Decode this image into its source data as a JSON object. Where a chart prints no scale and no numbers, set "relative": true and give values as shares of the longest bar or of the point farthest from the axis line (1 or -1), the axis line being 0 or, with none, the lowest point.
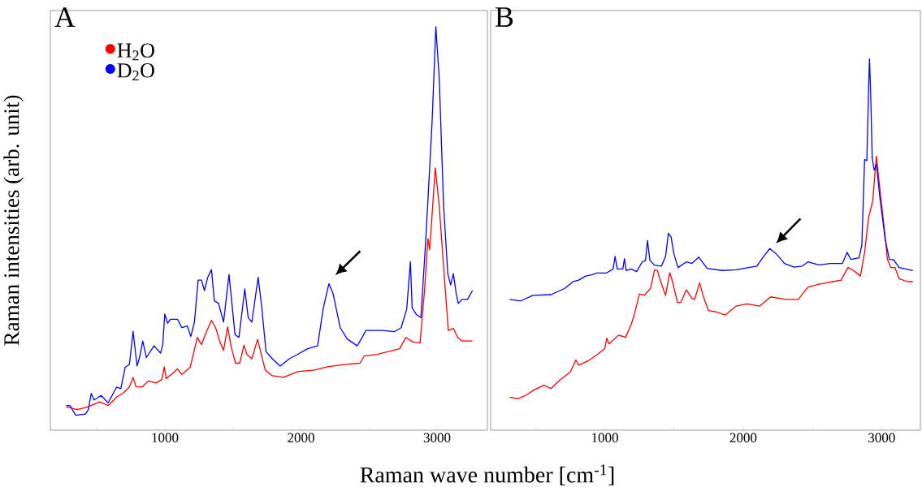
{
  "chart_data": [
    {
      "type": "line",
      "title": "A",
      "xlabel": "Raman wave number [cm$^{-1}$]",
      "ylabel": "Raman intensities (arb. unit)",
      "relative": true,
      "legend": "top left",
      "xlim": [
        158,
        3370
      ],
      "xticks": [
        {
          "value": 500,
          "label": null
        },
        1000,
        {
          "value": 1500,
          "label": null
        },
        2000,
        {
          "value": 2500,
          "label": null
        },
        3000
      ],
      "series": [
        {
          "name": "H$_{2}$O",
          "color": "#ff0000",
          "x": [
            275,
            354,
            416,
            458,
            520,
            583,
            645,
            697,
            739,
            766,
            787,
            832,
            878,
            936,
            978,
            995,
            1009,
            1061,
            1092,
            1124,
            1186,
            1238,
            1269,
            1296,
            1342,
            1373,
            1404,
            1431,
            1461,
            1488,
            1519,
            1550,
            1581,
            1602,
            1639,
            1681,
            1706,
            1737,
            1789,
            1872,
            1976,
            2101,
            2195,
            2330,
            2434,
            2465,
            2559,
            2725,
            2771,
            2819,
            2875,
            2908,
            2933,
            2946,
            2987,
            3016,
            3058,
            3083,
            3120,
            3152,
            3183,
            3260
          ],
          "values": [
            0.058,
            0.051,
            0.056,
            0.061,
            0.07,
            0.061,
            0.082,
            0.093,
            0.107,
            0.131,
            0.108,
            0.107,
            0.122,
            0.117,
            0.126,
            0.157,
            0.128,
            0.142,
            0.152,
            0.138,
            0.156,
            0.23,
            0.212,
            0.237,
            0.272,
            0.254,
            0.219,
            0.198,
            0.256,
            0.205,
            0.166,
            0.166,
            0.211,
            0.188,
            0.177,
            0.225,
            0.191,
            0.149,
            0.135,
            0.131,
            0.145,
            0.149,
            0.157,
            0.163,
            0.166,
            0.184,
            0.188,
            0.202,
            0.23,
            0.219,
            0.216,
            0.346,
            0.475,
            0.447,
            0.65,
            0.556,
            0.36,
            0.247,
            0.252,
            0.23,
            0.221,
            0.221
          ]
        },
        {
          "name": "D$_{2}$O",
          "color": "#0000ff",
          "x": [
            275,
            302,
            344,
            416,
            437,
            458,
            479,
            531,
            583,
            645,
            676,
            708,
            739,
            766,
            795,
            816,
            837,
            864,
            920,
            968,
            984,
            999,
            1020,
            1040,
            1092,
            1124,
            1165,
            1190,
            1217,
            1244,
            1269,
            1290,
            1315,
            1342,
            1363,
            1394,
            1431,
            1471,
            1515,
            1544,
            1587,
            1612,
            1639,
            1685,
            1710,
            1743,
            1789,
            1847,
            1914,
            1976,
            2049,
            2122,
            2164,
            2205,
            2236,
            2288,
            2340,
            2413,
            2455,
            2476,
            2538,
            2600,
            2684,
            2736,
            2777,
            2804,
            2817,
            2850,
            2881,
            2912,
            2933,
            2964,
            2991,
            3016,
            3048,
            3079,
            3100,
            3120,
            3141,
            3156,
            3183,
            3224,
            3260
          ],
          "values": [
            0.061,
            0.061,
            0.037,
            0.04,
            0.051,
            0.091,
            0.075,
            0.086,
            0.068,
            0.107,
            0.103,
            0.156,
            0.163,
            0.245,
            0.159,
            0.184,
            0.221,
            0.18,
            0.209,
            0.191,
            0.212,
            0.288,
            0.265,
            0.275,
            0.275,
            0.254,
            0.258,
            0.232,
            0.268,
            0.372,
            0.372,
            0.346,
            0.379,
            0.398,
            0.321,
            0.314,
            0.268,
            0.386,
            0.237,
            0.23,
            0.35,
            0.279,
            0.268,
            0.379,
            0.31,
            0.195,
            0.177,
            0.159,
            0.177,
            0.188,
            0.202,
            0.209,
            0.303,
            0.363,
            0.338,
            0.254,
            0.226,
            0.209,
            0.233,
            0.247,
            0.247,
            0.247,
            0.244,
            0.254,
            0.3,
            0.418,
            0.303,
            0.286,
            0.279,
            0.444,
            0.57,
            0.767,
            1.0,
            0.872,
            0.556,
            0.388,
            0.36,
            0.388,
            0.338,
            0.314,
            0.324,
            0.324,
            0.346
          ]
        }
      ]
    },
    {
      "type": "line",
      "title": "B",
      "relative": true,
      "xlim": [
        175,
        3280
      ],
      "xticks": [
        {
          "value": 500,
          "label": null
        },
        1000,
        {
          "value": 1500,
          "label": null
        },
        2000,
        {
          "value": 2500,
          "label": null
        },
        3000
      ],
      "series": [
        {
          "color": "#ff0000",
          "x": [
            312,
            372,
            431,
            491,
            561,
            611,
            671,
            751,
            791,
            811,
            881,
            950,
            1000,
            1014,
            1030,
            1100,
            1150,
            1190,
            1210,
            1250,
            1286,
            1330,
            1360,
            1380,
            1400,
            1439,
            1469,
            1489,
            1525,
            1549,
            1589,
            1629,
            1649,
            1685,
            1709,
            1749,
            1809,
            1869,
            1948,
            2028,
            2118,
            2198,
            2308,
            2398,
            2467,
            2547,
            2647,
            2707,
            2757,
            2797,
            2847,
            2877,
            2906,
            2936,
            2962,
            2986,
            3026,
            3042,
            3066,
            3096,
            3126,
            3186,
            3226
          ],
          "values": [
            0.089,
            0.085,
            0.094,
            0.109,
            0.121,
            0.112,
            0.134,
            0.157,
            0.189,
            0.175,
            0.187,
            0.205,
            0.22,
            0.248,
            0.232,
            0.256,
            0.25,
            0.284,
            0.307,
            0.367,
            0.363,
            0.382,
            0.432,
            0.43,
            0.404,
            0.363,
            0.424,
            0.4,
            0.344,
            0.344,
            0.378,
            0.355,
            0.352,
            0.397,
            0.363,
            0.322,
            0.318,
            0.31,
            0.334,
            0.34,
            0.334,
            0.359,
            0.352,
            0.352,
            0.385,
            0.393,
            0.4,
            0.404,
            0.438,
            0.43,
            0.415,
            0.479,
            0.573,
            0.618,
            0.738,
            0.655,
            0.52,
            0.46,
            0.438,
            0.438,
            0.408,
            0.4,
            0.4
          ]
        },
        {
          "color": "#0000ff",
          "x": [
            312,
            392,
            481,
            611,
            711,
            771,
            811,
            861,
            910,
            940,
            1010,
            1060,
            1074,
            1090,
            1130,
            1142,
            1154,
            1190,
            1230,
            1270,
            1294,
            1308,
            1326,
            1360,
            1409,
            1439,
            1459,
            1479,
            1499,
            1529,
            1589,
            1629,
            1679,
            1739,
            1849,
            1948,
            2098,
            2148,
            2192,
            2238,
            2298,
            2368,
            2427,
            2467,
            2547,
            2627,
            2717,
            2751,
            2777,
            2837,
            2857,
            2877,
            2893,
            2906,
            2912,
            2920,
            2932,
            2946,
            2962,
            2986,
            3026,
            3056,
            3086,
            3126,
            3226
          ],
          "values": [
            0.352,
            0.348,
            0.363,
            0.365,
            0.382,
            0.4,
            0.404,
            0.415,
            0.419,
            0.423,
            0.423,
            0.434,
            0.468,
            0.434,
            0.434,
            0.462,
            0.43,
            0.434,
            0.427,
            0.453,
            0.457,
            0.511,
            0.457,
            0.444,
            0.442,
            0.468,
            0.53,
            0.52,
            0.475,
            0.438,
            0.453,
            0.449,
            0.466,
            0.436,
            0.43,
            0.432,
            0.442,
            0.468,
            0.489,
            0.475,
            0.449,
            0.439,
            0.442,
            0.453,
            0.445,
            0.449,
            0.449,
            0.479,
            0.46,
            0.464,
            0.498,
            0.729,
            0.726,
            0.918,
            1.0,
            0.918,
            0.734,
            0.7,
            0.717,
            0.63,
            0.513,
            0.46,
            0.459,
            0.438,
            0.43
          ]
        }
      ]
    }
  ]
}
